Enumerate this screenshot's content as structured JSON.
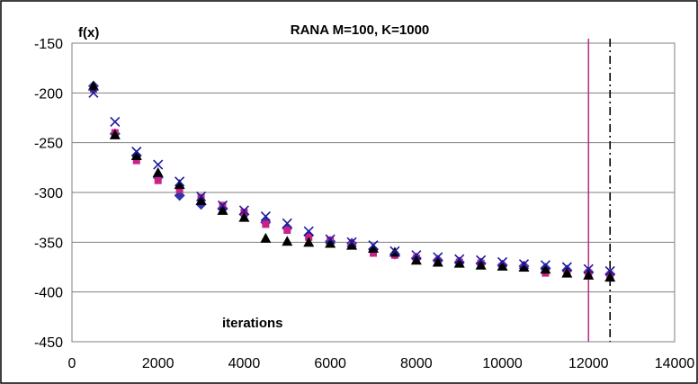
{
  "chart_data": {
    "type": "scatter",
    "title": "RANA M=100, K=1000",
    "ylabel": "f(x)",
    "xlabel": "iterations",
    "xlim": [
      0,
      14000
    ],
    "ylim": [
      -450,
      -150
    ],
    "xticks": [
      0,
      2000,
      4000,
      6000,
      8000,
      10000,
      12000,
      14000
    ],
    "yticks": [
      -150,
      -200,
      -250,
      -300,
      -350,
      -400,
      -450
    ],
    "grid": "horizontal",
    "colors": {
      "diamond": "#3333aa",
      "square": "#cc2288",
      "triangle": "#000000",
      "cross": "#1a1a9c",
      "solid_vline": "#bb3388",
      "dashdot_vline": "#000000"
    },
    "series": [
      {
        "marker": "diamond",
        "x": [
          500,
          1000,
          1500,
          2000,
          2500,
          3000,
          3500,
          4000,
          4500,
          5000,
          5500,
          6000,
          6500,
          7000,
          7500,
          8000,
          8500,
          9000,
          9500,
          10000,
          10500,
          11000,
          11500,
          12000,
          12500
        ],
        "y": [
          -193,
          -241,
          -263,
          -285,
          -303,
          -312,
          -316,
          -322,
          -330,
          -336,
          -343,
          -349,
          -351,
          -357,
          -362,
          -366,
          -368,
          -370,
          -371,
          -373,
          -374,
          -376,
          -378,
          -380,
          -382
        ]
      },
      {
        "marker": "square",
        "x": [
          500,
          1000,
          1500,
          2000,
          2500,
          3000,
          3500,
          4000,
          4500,
          5000,
          5500,
          6000,
          6500,
          7000,
          7500,
          8000,
          8500,
          9000,
          9500,
          10000,
          10500,
          11000,
          11500,
          12000,
          12500
        ],
        "y": [
          -196,
          -240,
          -268,
          -288,
          -297,
          -305,
          -313,
          -320,
          -332,
          -338,
          -345,
          -348,
          -353,
          -361,
          -363,
          -366,
          -369,
          -370,
          -371,
          -374,
          -376,
          -381,
          -380,
          -381,
          -383
        ]
      },
      {
        "marker": "triangle",
        "x": [
          500,
          1000,
          1500,
          2000,
          2500,
          3000,
          3500,
          4000,
          4500,
          5000,
          5500,
          6000,
          6500,
          7000,
          7500,
          8000,
          8500,
          9000,
          9500,
          10000,
          10500,
          11000,
          11500,
          12000,
          12500
        ],
        "y": [
          -193,
          -242,
          -263,
          -280,
          -292,
          -308,
          -318,
          -325,
          -346,
          -349,
          -350,
          -351,
          -353,
          -356,
          -360,
          -368,
          -370,
          -371,
          -373,
          -374,
          -375,
          -377,
          -381,
          -383,
          -385
        ]
      },
      {
        "marker": "cross",
        "x": [
          500,
          1000,
          1500,
          2000,
          2500,
          3000,
          3500,
          4000,
          4500,
          5000,
          5500,
          6000,
          6500,
          7000,
          7500,
          8000,
          8500,
          9000,
          9500,
          10000,
          10500,
          11000,
          11500,
          12000,
          12500
        ],
        "y": [
          -200,
          -229,
          -259,
          -272,
          -289,
          -304,
          -313,
          -318,
          -324,
          -331,
          -339,
          -347,
          -350,
          -353,
          -359,
          -363,
          -365,
          -367,
          -368,
          -370,
          -372,
          -373,
          -375,
          -377,
          -379
        ]
      }
    ],
    "vlines": [
      {
        "x": 12000,
        "style": "solid"
      },
      {
        "x": 12500,
        "style": "dashdot"
      }
    ]
  }
}
